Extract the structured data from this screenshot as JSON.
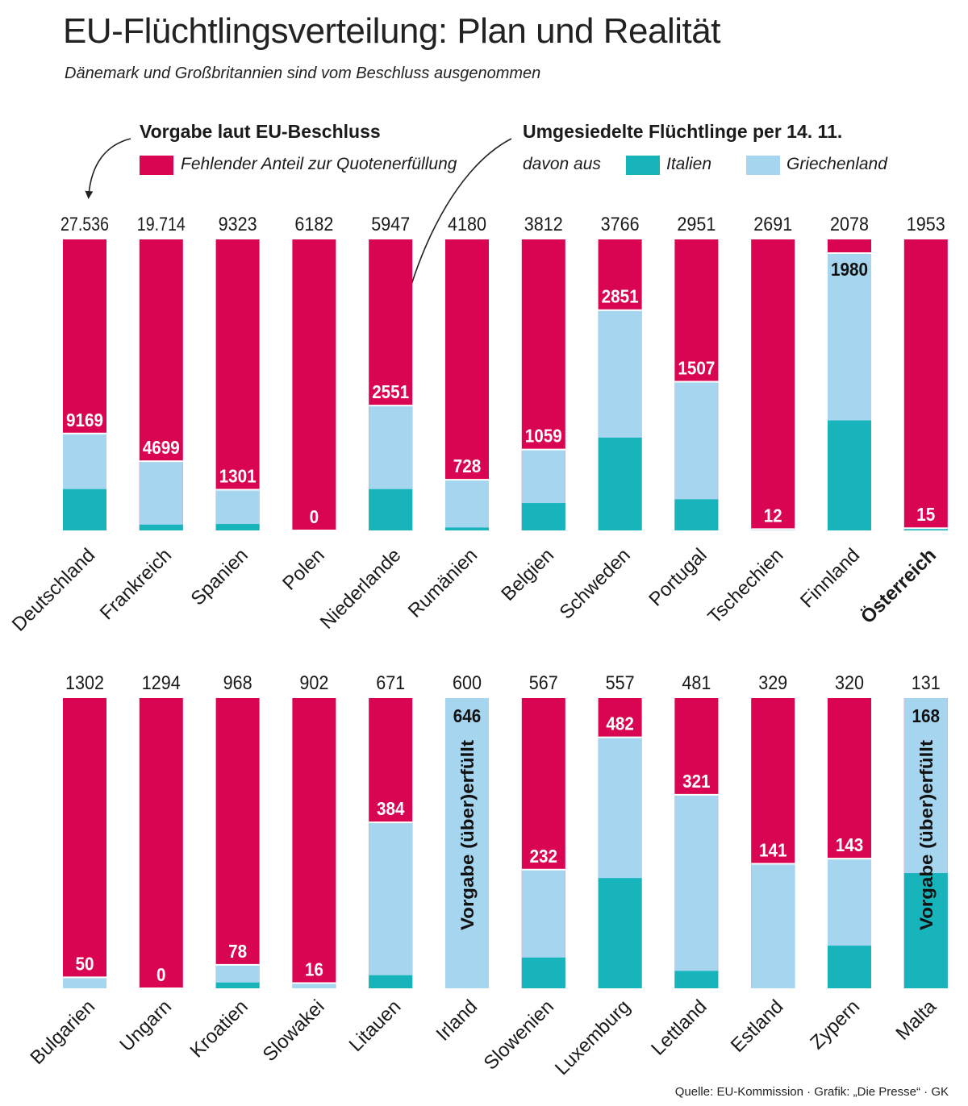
{
  "header": {
    "title": "EU-Flüchtlingsverteilung: Plan und Realität",
    "subtitle": "Dänemark und Großbritannien sind vom Beschluss ausgenommen"
  },
  "legend": {
    "quota_heading": "Vorgabe laut EU-Beschluss",
    "missing_label": "Fehlender Anteil zur Quotenerfüllung",
    "resettled_heading": "Umgesiedelte Flüchtlinge per 14. 11.",
    "from_label": "davon aus",
    "italy_label": "Italien",
    "greece_label": "Griechenland"
  },
  "colors": {
    "missing": "#d90452",
    "italy": "#18b4bc",
    "greece": "#a6d6ef"
  },
  "source": "Quelle: EU-Kommission · Grafik: „Die Presse“ · GK",
  "chart_data": [
    {
      "type": "bar",
      "stacked": true,
      "categories": [
        "Deutschland",
        "Frankreich",
        "Spanien",
        "Polen",
        "Niederlande",
        "Rumänien",
        "Belgien",
        "Schweden",
        "Portugal",
        "Tschechien",
        "Finnland",
        "Österreich"
      ],
      "highlight": "Österreich",
      "quota": [
        "27.536",
        "19.714",
        "9323",
        "6182",
        "5947",
        "4180",
        "3812",
        "3766",
        "2951",
        "2691",
        "2078",
        "1953"
      ],
      "resettled_labels": [
        "9169",
        "4699",
        "1301",
        "0",
        "2551",
        "728",
        "1059",
        "2851",
        "1507",
        "12",
        "1980",
        "15"
      ],
      "resettled_fraction": [
        0.333,
        0.238,
        0.14,
        0.0,
        0.429,
        0.174,
        0.278,
        0.757,
        0.511,
        0.0045,
        0.953,
        0.0077
      ],
      "italy_fraction": [
        0.142,
        0.02,
        0.022,
        0.0,
        0.142,
        0.01,
        0.094,
        0.319,
        0.107,
        0.0,
        0.378,
        0.005
      ],
      "fulfilled": [
        false,
        false,
        false,
        false,
        false,
        false,
        false,
        false,
        false,
        false,
        false,
        false
      ],
      "series": [
        {
          "name": "Italien"
        },
        {
          "name": "Griechenland"
        },
        {
          "name": "Fehlender Anteil zur Quotenerfüllung"
        }
      ]
    },
    {
      "type": "bar",
      "stacked": true,
      "categories": [
        "Bulgarien",
        "Ungarn",
        "Kroatien",
        "Slowakei",
        "Litauen",
        "Irland",
        "Slowenien",
        "Luxemburg",
        "Lettland",
        "Estland",
        "Zypern",
        "Malta"
      ],
      "quota": [
        "1302",
        "1294",
        "968",
        "902",
        "671",
        "600",
        "567",
        "557",
        "481",
        "329",
        "320",
        "131"
      ],
      "resettled_labels": [
        "50",
        "0",
        "78",
        "16",
        "384",
        "646",
        "232",
        "482",
        "321",
        "141",
        "143",
        "168"
      ],
      "resettled_fraction": [
        0.038,
        0.0,
        0.081,
        0.018,
        0.572,
        1.0,
        0.409,
        0.865,
        0.667,
        0.429,
        0.447,
        1.0
      ],
      "italy_fraction": [
        0.0,
        0.0,
        0.02,
        0.0,
        0.045,
        0.0,
        0.106,
        0.38,
        0.06,
        0.0,
        0.147,
        0.397
      ],
      "fulfilled": [
        false,
        false,
        false,
        false,
        false,
        true,
        false,
        false,
        false,
        false,
        false,
        true
      ],
      "fulfilled_label": "Vorgabe (über)erfüllt",
      "series": [
        {
          "name": "Italien"
        },
        {
          "name": "Griechenland"
        },
        {
          "name": "Fehlender Anteil zur Quotenerfüllung"
        }
      ]
    }
  ]
}
